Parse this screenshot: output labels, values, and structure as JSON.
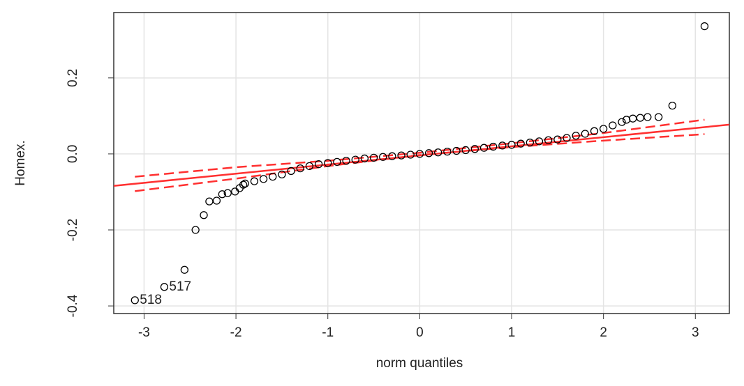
{
  "chart_data": {
    "type": "scatter",
    "x_label": "norm quantiles",
    "y_label": "Homex.",
    "xlim": [
      -3.33,
      3.37
    ],
    "ylim": [
      -0.42,
      0.372
    ],
    "xticks": [
      -3,
      -2,
      -1,
      0,
      1,
      2,
      3
    ],
    "yticks": [
      -0.4,
      -0.2,
      {
        "value": 0,
        "label": "0.0"
      },
      0.2
    ],
    "grid": true,
    "color": "#000000",
    "x": [
      -3.1,
      -2.78,
      -2.56,
      -2.44,
      -2.35,
      -2.29,
      -2.21,
      -2.15,
      -2.09,
      -2.01,
      -1.96,
      -1.92,
      -1.9,
      -1.8,
      -1.7,
      -1.6,
      -1.5,
      -1.4,
      -1.3,
      -1.2,
      -1.1,
      -1.0,
      -0.9,
      -0.8,
      -0.7,
      -0.6,
      -0.5,
      -0.4,
      -0.3,
      -0.2,
      -0.1,
      0,
      0.1,
      0.2,
      0.3,
      0.4,
      0.5,
      0.6,
      0.7,
      0.8,
      0.9,
      1.0,
      1.1,
      1.2,
      1.3,
      1.4,
      1.5,
      1.6,
      1.7,
      1.8,
      1.9,
      2.0,
      2.1,
      2.2,
      2.25,
      2.32,
      2.4,
      2.48,
      2.6,
      2.75,
      3.1
    ],
    "values": [
      -0.385,
      -0.35,
      -0.305,
      -0.2,
      -0.161,
      -0.125,
      -0.123,
      -0.106,
      -0.103,
      -0.099,
      -0.09,
      -0.081,
      -0.078,
      -0.072,
      -0.066,
      -0.06,
      -0.054,
      -0.045,
      -0.038,
      -0.032,
      -0.027,
      -0.024,
      -0.021,
      -0.018,
      -0.015,
      -0.012,
      -0.01,
      -0.008,
      -0.006,
      -0.004,
      -0.002,
      0,
      0.002,
      0.004,
      0.006,
      0.008,
      0.01,
      0.013,
      0.016,
      0.019,
      0.022,
      0.024,
      0.027,
      0.03,
      0.033,
      0.036,
      0.038,
      0.042,
      0.048,
      0.053,
      0.06,
      0.066,
      0.075,
      0.084,
      0.09,
      0.093,
      0.095,
      0.097,
      0.097,
      0.127,
      0.336
    ],
    "labels": [
      "518",
      "517",
      null,
      null,
      null,
      null,
      null,
      null,
      null,
      null,
      null,
      null,
      null,
      null,
      null,
      null,
      null,
      null,
      null,
      null,
      null,
      null,
      null,
      null,
      null,
      null,
      null,
      null,
      null,
      null,
      null,
      null,
      null,
      null,
      null,
      null,
      null,
      null,
      null,
      null,
      null,
      null,
      null,
      null,
      null,
      null,
      null,
      null,
      null,
      null,
      null,
      null,
      null,
      null,
      null,
      null,
      null,
      null,
      null,
      null,
      null
    ],
    "reference_line": {
      "color": "#ff3030",
      "x": [
        -3.33,
        3.37
      ],
      "y": [
        -0.084,
        0.077
      ]
    },
    "envelope": {
      "color": "#ff3030",
      "x": [
        -3.1,
        -2,
        -1,
        0,
        1,
        2,
        3.1
      ],
      "upper": [
        -0.06,
        -0.035,
        -0.018,
        0.003,
        0.028,
        0.055,
        0.09
      ],
      "lower": [
        -0.098,
        -0.065,
        -0.032,
        -0.003,
        0.018,
        0.035,
        0.052
      ]
    }
  }
}
